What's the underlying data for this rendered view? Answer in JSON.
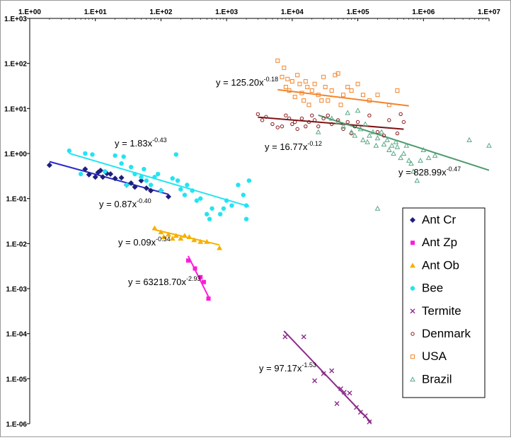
{
  "chart_data": {
    "type": "scatter",
    "title": "",
    "xlabel": "",
    "ylabel": "",
    "x_scale": "log",
    "y_scale": "log",
    "xlim": [
      1,
      10000000
    ],
    "ylim": [
      1e-06,
      1000
    ],
    "x_tick_labels": [
      "1.E+00",
      "1.E+01",
      "1.E+02",
      "1.E+03",
      "1.E+04",
      "1.E+05",
      "1.E+06",
      "1.E+07"
    ],
    "y_tick_labels": [
      "1.E+03",
      "1.E+02",
      "1.E+01",
      "1.E+00",
      "1.E-01",
      "1.E-02",
      "1.E-03",
      "1.E-04",
      "1.E-05",
      "1.E-06"
    ],
    "grid": false,
    "legend_position": "right",
    "series": [
      {
        "name": "Ant Cr",
        "color": "#1f1f7a",
        "marker": "diamond",
        "points": [
          [
            2,
            0.55
          ],
          [
            7,
            0.45
          ],
          [
            8,
            0.34
          ],
          [
            10,
            0.3
          ],
          [
            11,
            0.38
          ],
          [
            12,
            0.42
          ],
          [
            13,
            0.3
          ],
          [
            15,
            0.36
          ],
          [
            17,
            0.35
          ],
          [
            20,
            0.28
          ],
          [
            25,
            0.29
          ],
          [
            30,
            0.2
          ],
          [
            35,
            0.22
          ],
          [
            40,
            0.18
          ],
          [
            50,
            0.25
          ],
          [
            60,
            0.17
          ],
          [
            70,
            0.15
          ],
          [
            100,
            0.15
          ],
          [
            130,
            0.11
          ]
        ],
        "fit": {
          "a": 0.87,
          "b": -0.4,
          "x_range": [
            2,
            130
          ],
          "label": "y = 0.87x",
          "exponent": "-0.40"
        }
      },
      {
        "name": "Ant Zp",
        "color": "#ff1adb",
        "marker": "square",
        "points": [
          [
            260,
            0.0042
          ],
          [
            330,
            0.0028
          ],
          [
            400,
            0.0018
          ],
          [
            450,
            0.0014
          ],
          [
            530,
            0.0006
          ]
        ],
        "fit": {
          "a": 63218.7,
          "b": -2.93,
          "x_range": [
            260,
            530
          ],
          "label": "y = 63218.70x",
          "exponent": "-2.93"
        }
      },
      {
        "name": "Ant Ob",
        "color": "#f5b000",
        "marker": "triangle",
        "points": [
          [
            80,
            0.022
          ],
          [
            100,
            0.018
          ],
          [
            110,
            0.014
          ],
          [
            130,
            0.016
          ],
          [
            150,
            0.013
          ],
          [
            170,
            0.015
          ],
          [
            200,
            0.013
          ],
          [
            230,
            0.015
          ],
          [
            270,
            0.014
          ],
          [
            320,
            0.012
          ],
          [
            400,
            0.011
          ],
          [
            500,
            0.011
          ],
          [
            780,
            0.008
          ]
        ],
        "fit": {
          "a": 0.09,
          "b": -0.34,
          "x_range": [
            80,
            780
          ],
          "label": "y = 0.09x",
          "exponent": "-0.34"
        }
      },
      {
        "name": "Bee",
        "color": "#22e4f2",
        "marker": "circle",
        "points": [
          [
            4,
            1.15
          ],
          [
            6,
            0.35
          ],
          [
            7,
            1.0
          ],
          [
            9,
            0.95
          ],
          [
            14,
            0.4
          ],
          [
            20,
            0.9
          ],
          [
            25,
            0.6
          ],
          [
            27,
            0.85
          ],
          [
            30,
            0.2
          ],
          [
            35,
            0.5
          ],
          [
            40,
            0.35
          ],
          [
            50,
            0.3
          ],
          [
            55,
            0.45
          ],
          [
            60,
            0.25
          ],
          [
            70,
            0.2
          ],
          [
            80,
            0.3
          ],
          [
            90,
            0.35
          ],
          [
            100,
            0.15
          ],
          [
            150,
            0.28
          ],
          [
            180,
            0.25
          ],
          [
            200,
            0.16
          ],
          [
            230,
            0.12
          ],
          [
            250,
            0.2
          ],
          [
            300,
            0.15
          ],
          [
            350,
            0.09
          ],
          [
            400,
            0.1
          ],
          [
            500,
            0.045
          ],
          [
            550,
            0.035
          ],
          [
            600,
            0.06
          ],
          [
            800,
            0.045
          ],
          [
            900,
            0.06
          ],
          [
            1000,
            0.09
          ],
          [
            1200,
            0.07
          ],
          [
            1500,
            0.2
          ],
          [
            1800,
            0.12
          ],
          [
            2000,
            0.07
          ],
          [
            2000,
            0.035
          ],
          [
            2200,
            0.25
          ],
          [
            170,
            0.95
          ]
        ],
        "fit": {
          "a": 1.83,
          "b": -0.43,
          "x_range": [
            4,
            2200
          ],
          "label": "y = 1.83x",
          "exponent": "-0.43"
        }
      },
      {
        "name": "Termite",
        "color": "#8b2c8b",
        "marker": "x",
        "points": [
          [
            7800,
            8.5e-05
          ],
          [
            15000,
            8.5e-05
          ],
          [
            22000,
            9e-06
          ],
          [
            30000,
            1.3e-05
          ],
          [
            40000,
            1.5e-05
          ],
          [
            48000,
            2.8e-06
          ],
          [
            55000,
            6e-06
          ],
          [
            62000,
            5e-06
          ],
          [
            75000,
            4.8e-06
          ],
          [
            95000,
            2.3e-06
          ],
          [
            110000,
            1.8e-06
          ],
          [
            130000,
            1.5e-06
          ],
          [
            150000,
            1.1e-06
          ]
        ],
        "fit": {
          "a": 97.17,
          "b": -1.53,
          "x_range": [
            7500,
            160000
          ],
          "label": "y = 97.17x",
          "exponent": "-1.53"
        }
      },
      {
        "name": "Denmark",
        "color": "#8b1a1a",
        "marker": "circle-open",
        "points": [
          [
            3000,
            7.5
          ],
          [
            3500,
            5.5
          ],
          [
            4000,
            6.5
          ],
          [
            5000,
            4.5
          ],
          [
            6000,
            3.8
          ],
          [
            7000,
            4.0
          ],
          [
            8000,
            7.0
          ],
          [
            9000,
            6.0
          ],
          [
            10000,
            4.5
          ],
          [
            11000,
            5.0
          ],
          [
            12000,
            3.5
          ],
          [
            14000,
            6.0
          ],
          [
            16000,
            4.0
          ],
          [
            18000,
            5.0
          ],
          [
            20000,
            7.0
          ],
          [
            22000,
            5.5
          ],
          [
            25000,
            4.0
          ],
          [
            30000,
            6.0
          ],
          [
            35000,
            7.0
          ],
          [
            40000,
            4.5
          ],
          [
            50000,
            5.5
          ],
          [
            60000,
            3.5
          ],
          [
            70000,
            5.0
          ],
          [
            80000,
            2.8
          ],
          [
            90000,
            4.0
          ],
          [
            100000,
            5.0
          ],
          [
            150000,
            7.0
          ],
          [
            200000,
            3.0
          ],
          [
            250000,
            2.5
          ],
          [
            300000,
            5.5
          ],
          [
            400000,
            2.8
          ],
          [
            450000,
            7.5
          ],
          [
            500000,
            5.0
          ]
        ],
        "fit": {
          "a": 16.77,
          "b": -0.12,
          "x_range": [
            3000,
            500000
          ],
          "label": "y = 16.77x",
          "exponent": "-0.12"
        }
      },
      {
        "name": "USA",
        "color": "#f2842a",
        "marker": "square-open",
        "points": [
          [
            6000,
            115
          ],
          [
            7000,
            50
          ],
          [
            7500,
            80
          ],
          [
            8000,
            30
          ],
          [
            8500,
            45
          ],
          [
            9000,
            25
          ],
          [
            10000,
            40
          ],
          [
            11000,
            18
          ],
          [
            12000,
            55
          ],
          [
            13000,
            35
          ],
          [
            14000,
            22
          ],
          [
            15000,
            15
          ],
          [
            16000,
            40
          ],
          [
            17000,
            30
          ],
          [
            18000,
            12
          ],
          [
            20000,
            25
          ],
          [
            22000,
            35
          ],
          [
            25000,
            20
          ],
          [
            28000,
            15
          ],
          [
            30000,
            50
          ],
          [
            32000,
            30
          ],
          [
            35000,
            15
          ],
          [
            40000,
            25
          ],
          [
            45000,
            55
          ],
          [
            50000,
            60
          ],
          [
            55000,
            12
          ],
          [
            60000,
            20
          ],
          [
            70000,
            30
          ],
          [
            80000,
            25
          ],
          [
            100000,
            35
          ],
          [
            120000,
            20
          ],
          [
            150000,
            15
          ],
          [
            200000,
            20
          ],
          [
            300000,
            12
          ],
          [
            400000,
            25
          ]
        ],
        "fit": {
          "a": 125.2,
          "b": -0.18,
          "x_range": [
            6000,
            600000
          ],
          "label": "y = 125.20x",
          "exponent": "-0.18"
        }
      },
      {
        "name": "Brazil",
        "color": "#5aa885",
        "marker": "triangle-open",
        "points": [
          [
            25000,
            3.0
          ],
          [
            40000,
            6.0
          ],
          [
            50000,
            5.0
          ],
          [
            60000,
            4.0
          ],
          [
            70000,
            8.0
          ],
          [
            80000,
            3.0
          ],
          [
            90000,
            2.5
          ],
          [
            100000,
            9.0
          ],
          [
            110000,
            3.5
          ],
          [
            120000,
            2.0
          ],
          [
            130000,
            4.5
          ],
          [
            140000,
            1.8
          ],
          [
            150000,
            2.5
          ],
          [
            170000,
            3.0
          ],
          [
            190000,
            1.5
          ],
          [
            200000,
            2.2
          ],
          [
            230000,
            3.0
          ],
          [
            250000,
            1.6
          ],
          [
            280000,
            2.0
          ],
          [
            300000,
            1.2
          ],
          [
            330000,
            1.5
          ],
          [
            350000,
            1.0
          ],
          [
            380000,
            1.8
          ],
          [
            400000,
            1.4
          ],
          [
            450000,
            0.8
          ],
          [
            500000,
            1.0
          ],
          [
            550000,
            1.5
          ],
          [
            600000,
            0.7
          ],
          [
            650000,
            0.6
          ],
          [
            700000,
            0.4
          ],
          [
            800000,
            0.25
          ],
          [
            900000,
            0.7
          ],
          [
            1000000,
            1.2
          ],
          [
            1200000,
            0.8
          ],
          [
            1500000,
            0.9
          ],
          [
            200000,
            0.06
          ],
          [
            5000000,
            2.0
          ],
          [
            10000000,
            1.5
          ]
        ],
        "fit": {
          "a": 828.99,
          "b": -0.47,
          "x_range": [
            25000,
            10000000
          ],
          "label": "y = 828.99x",
          "exponent": "-0.47"
        }
      }
    ],
    "trendline_colors": {
      "Ant Cr": "#2a2acc",
      "Ant Zp": "#ff1adb",
      "Ant Ob": "#f5b000",
      "Bee": "#22e4f2",
      "Termite": "#8b2c8b",
      "Denmark": "#7a1515",
      "USA": "#f2842a",
      "Brazil": "#4c9b6e"
    }
  }
}
